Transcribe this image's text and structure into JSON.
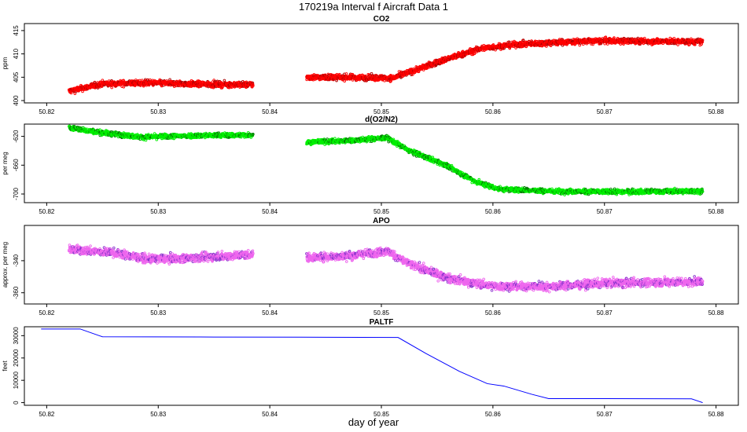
{
  "page": {
    "title": "170219a   Interval f Aircraft Data 1",
    "xlabel": "day of year"
  },
  "chart_data": [
    {
      "type": "scatter",
      "title": "CO2",
      "ylabel": "ppm",
      "xlim": [
        50.818,
        50.882
      ],
      "ylim": [
        399.5,
        416.5
      ],
      "x_ticks": [
        50.82,
        50.83,
        50.84,
        50.85,
        50.86,
        50.87,
        50.88
      ],
      "x_tick_labels": [
        "50.82",
        "50.83",
        "50.84",
        "50.85",
        "50.86",
        "50.87",
        "50.88"
      ],
      "y_ticks": [
        400,
        405,
        410,
        415
      ],
      "y_tick_labels": [
        "400",
        "405",
        "410",
        "415"
      ],
      "color": "#ff0000",
      "alt_color": "#aa0000",
      "segments": [
        {
          "x_start": 50.822,
          "x_end": 50.8385,
          "points": [
            [
              50.822,
              402.0
            ],
            [
              50.825,
              403.6
            ],
            [
              50.829,
              403.8
            ],
            [
              50.834,
              403.5
            ],
            [
              50.8385,
              403.4
            ]
          ],
          "noise": 0.6
        },
        {
          "x_start": 50.8433,
          "x_end": 50.8788,
          "points": [
            [
              50.8433,
              405.0
            ],
            [
              50.847,
              405.0
            ],
            [
              50.851,
              404.8
            ],
            [
              50.853,
              406.5
            ],
            [
              50.856,
              409.0
            ],
            [
              50.859,
              411.2
            ],
            [
              50.862,
              412.0
            ],
            [
              50.866,
              412.5
            ],
            [
              50.87,
              412.8
            ],
            [
              50.8788,
              412.6
            ]
          ],
          "noise": 0.6
        }
      ]
    },
    {
      "type": "scatter",
      "title": "d(O2/N2)",
      "ylabel": "per meg",
      "xlim": [
        50.818,
        50.882
      ],
      "ylim": [
        -712,
        -603
      ],
      "x_ticks": [
        50.82,
        50.83,
        50.84,
        50.85,
        50.86,
        50.87,
        50.88
      ],
      "x_tick_labels": [
        "50.82",
        "50.83",
        "50.84",
        "50.85",
        "50.86",
        "50.87",
        "50.88"
      ],
      "y_ticks": [
        -620,
        -660,
        -700
      ],
      "y_tick_labels": [
        "-620",
        "-660",
        "-700"
      ],
      "color": "#00ee00",
      "alt_color": "#007700",
      "segments": [
        {
          "x_start": 50.822,
          "x_end": 50.8385,
          "points": [
            [
              50.822,
              -608
            ],
            [
              50.825,
              -615
            ],
            [
              50.8285,
              -621
            ],
            [
              50.833,
              -619
            ],
            [
              50.8385,
              -618
            ]
          ],
          "noise": 3.2
        },
        {
          "x_start": 50.8433,
          "x_end": 50.8788,
          "points": [
            [
              50.8433,
              -628
            ],
            [
              50.847,
              -626
            ],
            [
              50.8505,
              -622
            ],
            [
              50.8525,
              -640
            ],
            [
              50.8555,
              -658
            ],
            [
              50.8585,
              -683
            ],
            [
              50.8605,
              -693
            ],
            [
              50.865,
              -696
            ],
            [
              50.87,
              -697
            ],
            [
              50.8788,
              -696
            ]
          ],
          "noise": 3.2
        }
      ]
    },
    {
      "type": "scatter",
      "title": "APO",
      "ylabel": "approx. per meg",
      "xlim": [
        50.818,
        50.882
      ],
      "ylim": [
        -367,
        -318
      ],
      "x_ticks": [
        50.82,
        50.83,
        50.84,
        50.85,
        50.86,
        50.87,
        50.88
      ],
      "x_tick_labels": [
        "50.82",
        "50.83",
        "50.84",
        "50.85",
        "50.86",
        "50.87",
        "50.88"
      ],
      "y_ticks": [
        -340,
        -360
      ],
      "y_tick_labels": [
        "-340",
        "-360"
      ],
      "color": "#ee66ee",
      "alt_color": "#8833cc",
      "segments": [
        {
          "x_start": 50.822,
          "x_end": 50.8385,
          "points": [
            [
              50.822,
              -333
            ],
            [
              50.826,
              -335
            ],
            [
              50.829,
              -339
            ],
            [
              50.834,
              -338
            ],
            [
              50.8385,
              -336
            ]
          ],
          "noise": 2.5
        },
        {
          "x_start": 50.8433,
          "x_end": 50.8788,
          "points": [
            [
              50.8433,
              -338
            ],
            [
              50.847,
              -337
            ],
            [
              50.8505,
              -334
            ],
            [
              50.8525,
              -342
            ],
            [
              50.856,
              -351
            ],
            [
              50.86,
              -356
            ],
            [
              50.865,
              -356
            ],
            [
              50.87,
              -354
            ],
            [
              50.8788,
              -353
            ]
          ],
          "noise": 2.5
        }
      ]
    },
    {
      "type": "line",
      "title": "PALTF",
      "ylabel": "feet",
      "xlim": [
        50.818,
        50.882
      ],
      "ylim": [
        -1200,
        34000
      ],
      "x_ticks": [
        50.82,
        50.83,
        50.84,
        50.85,
        50.86,
        50.87,
        50.88
      ],
      "x_tick_labels": [
        "50.82",
        "50.83",
        "50.84",
        "50.85",
        "50.86",
        "50.87",
        "50.88"
      ],
      "y_ticks": [
        0,
        10000,
        20000,
        30000
      ],
      "y_tick_labels": [
        "0",
        "10000",
        "20000",
        "30000"
      ],
      "color": "#0000ff",
      "series": [
        {
          "x": [
            50.8195,
            50.823,
            50.825,
            50.835,
            50.845,
            50.8515,
            50.854,
            50.857,
            50.8595,
            50.861,
            50.8635,
            50.865,
            50.87,
            50.8778,
            50.8788
          ],
          "y": [
            33000,
            33000,
            29500,
            29400,
            29300,
            29200,
            22000,
            14000,
            8500,
            7400,
            3700,
            1800,
            1800,
            1700,
            0
          ]
        }
      ]
    }
  ]
}
